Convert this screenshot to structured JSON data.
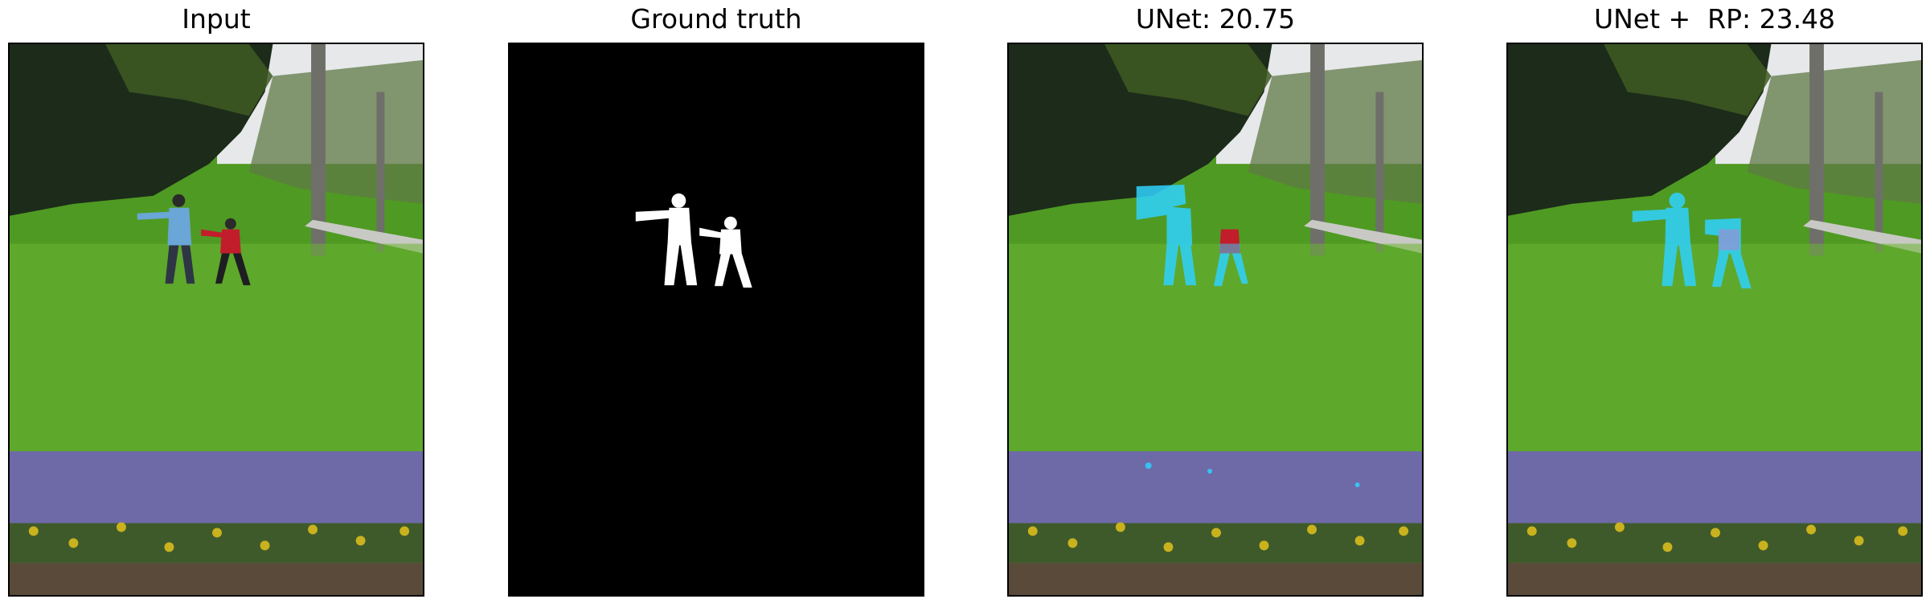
{
  "panels": [
    {
      "title": "Input"
    },
    {
      "title": "Ground truth"
    },
    {
      "title": "UNet: 20.75"
    },
    {
      "title": "UNet +  RP: 23.48"
    }
  ],
  "colors": {
    "sky": "#e6e8ea",
    "trees_dark": "#1c2b1a",
    "trees_light": "#4f6a2c",
    "grass": "#4f9a23",
    "grass_light": "#6cb533",
    "flowers": "#6e6aa8",
    "pansies": "#c9b21e",
    "soil": "#5a4a3a",
    "shirt_adult": "#6aa6d6",
    "shirt_child": "#c21d2a",
    "mask_fg": "#ffffff",
    "mask_bg": "#000000",
    "overlay": "#2fd2ff"
  }
}
